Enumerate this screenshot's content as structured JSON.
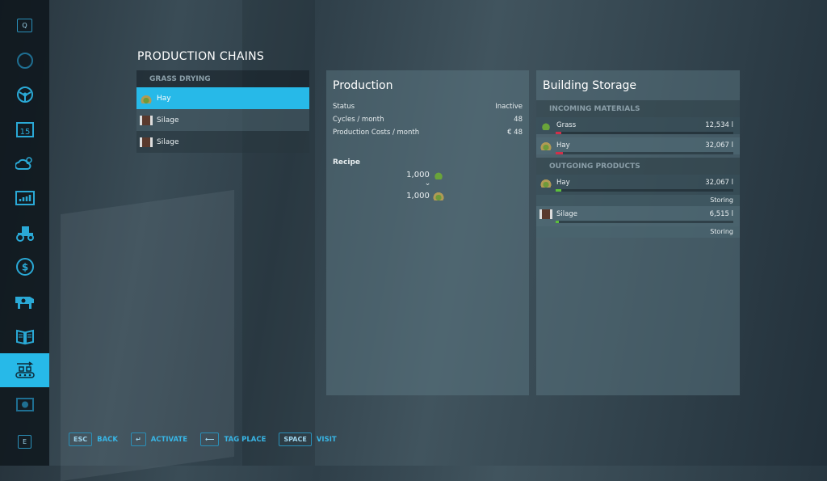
{
  "sidebar": {
    "top_key": "Q",
    "bottom_key": "E",
    "items": [
      {
        "icon": "map-icon"
      },
      {
        "icon": "steering-wheel-icon"
      },
      {
        "icon": "calendar-icon",
        "label": "15"
      },
      {
        "icon": "weather-icon"
      },
      {
        "icon": "statistics-icon"
      },
      {
        "icon": "tractor-icon"
      },
      {
        "icon": "dollar-icon",
        "label": "$"
      },
      {
        "icon": "cow-icon"
      },
      {
        "icon": "contracts-icon"
      },
      {
        "icon": "production-icon",
        "active": true
      },
      {
        "icon": "help-icon"
      }
    ]
  },
  "title": "PRODUCTION CHAINS",
  "chains": {
    "group": "GRASS DRYING",
    "items": [
      {
        "label": "Hay",
        "icon": "hay-icon",
        "selected": true
      },
      {
        "label": "Silage",
        "icon": "silage-icon"
      },
      {
        "label": "Silage",
        "icon": "silage-icon"
      }
    ]
  },
  "production": {
    "title": "Production",
    "rows": [
      {
        "label": "Status",
        "value": "Inactive"
      },
      {
        "label": "Cycles / month",
        "value": "48"
      },
      {
        "label": "Production Costs / month",
        "value": "€ 48"
      }
    ],
    "recipe_label": "Recipe",
    "input": {
      "amount": "1,000",
      "icon": "grass-icon"
    },
    "output": {
      "amount": "1,000",
      "icon": "hay-icon"
    }
  },
  "storage": {
    "title": "Building Storage",
    "incoming_label": "INCOMING MATERIALS",
    "outgoing_label": "OUTGOING PRODUCTS",
    "incoming": [
      {
        "name": "Grass",
        "value": "12,534 l",
        "fill_pct": 3,
        "color": "#d0304a"
      },
      {
        "name": "Hay",
        "value": "32,067 l",
        "fill_pct": 4,
        "color": "#d0304a"
      }
    ],
    "outgoing": [
      {
        "name": "Hay",
        "value": "32,067 l",
        "fill_pct": 3,
        "color": "#5cc03a",
        "status": "Storing"
      },
      {
        "name": "Silage",
        "value": "6,515 l",
        "fill_pct": 1,
        "color": "#5cc03a",
        "status": "Storing"
      }
    ]
  },
  "footer": [
    {
      "key": "ESC",
      "label": "BACK"
    },
    {
      "key": "↵",
      "label": "ACTIVATE"
    },
    {
      "key": "⟵",
      "label": "TAG PLACE"
    },
    {
      "key": "SPACE",
      "label": "VISIT"
    }
  ]
}
